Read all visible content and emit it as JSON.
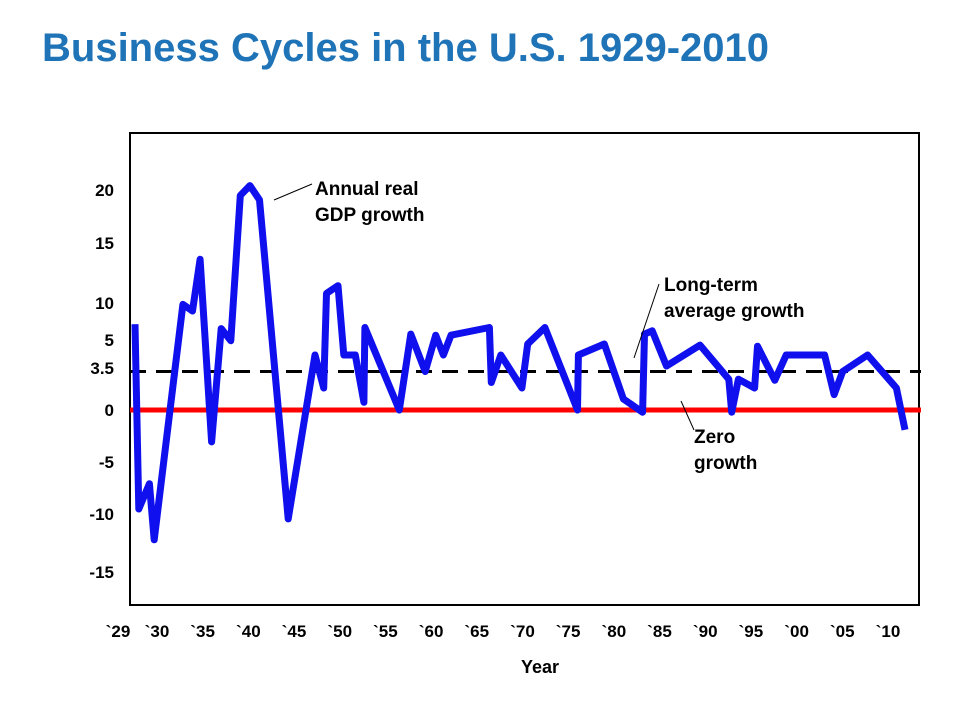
{
  "slide_title": "Business Cycles in the U.S. 1929-2010",
  "chart_data": {
    "type": "line",
    "title": "Business Cycles in the U.S. 1929-2010",
    "xlabel": "Year",
    "ylabel": "",
    "xlim": [
      1929,
      2011
    ],
    "ylim": [
      -17,
      24
    ],
    "grid": false,
    "y_ticks": [
      {
        "value": 20,
        "label": "20"
      },
      {
        "value": 15,
        "label": "15"
      },
      {
        "value": 10,
        "label": "10"
      },
      {
        "value": 5,
        "label": "5"
      },
      {
        "value": 3.5,
        "label": "3.5"
      },
      {
        "value": 0,
        "label": "0"
      },
      {
        "value": -5,
        "label": "-5"
      },
      {
        "value": -10,
        "label": "-10"
      },
      {
        "value": -15,
        "label": "-15"
      }
    ],
    "x_ticks": [
      {
        "value": 1929,
        "label": "`29"
      },
      {
        "value": 1930,
        "label": "`30"
      },
      {
        "value": 1935,
        "label": "`35"
      },
      {
        "value": 1940,
        "label": "`40"
      },
      {
        "value": 1945,
        "label": "`45"
      },
      {
        "value": 1950,
        "label": "`50"
      },
      {
        "value": 1955,
        "label": "`55"
      },
      {
        "value": 1960,
        "label": "`60"
      },
      {
        "value": 1965,
        "label": "`65"
      },
      {
        "value": 1970,
        "label": "`70"
      },
      {
        "value": 1975,
        "label": "`75"
      },
      {
        "value": 1980,
        "label": "`80"
      },
      {
        "value": 1985,
        "label": "`85"
      },
      {
        "value": 1990,
        "label": "`90"
      },
      {
        "value": 1995,
        "label": "`95"
      },
      {
        "value": 2000,
        "label": "`00"
      },
      {
        "value": 2005,
        "label": "`05"
      },
      {
        "value": 2010,
        "label": "`10"
      }
    ],
    "series": [
      {
        "color": "#1010ee",
        "points": [
          [
            1929,
            7.8
          ],
          [
            1929.4,
            -9.0
          ],
          [
            1930.5,
            -6.7
          ],
          [
            1931,
            -11.8
          ],
          [
            1934,
            9.6
          ],
          [
            1935,
            9.0
          ],
          [
            1935.8,
            13.7
          ],
          [
            1937,
            -2.9
          ],
          [
            1938,
            7.4
          ],
          [
            1939,
            6.3
          ],
          [
            1940,
            19.5
          ],
          [
            1941,
            20.4
          ],
          [
            1942,
            19.1
          ],
          [
            1945,
            -9.9
          ],
          [
            1947.8,
            5.0
          ],
          [
            1948.7,
            2.0
          ],
          [
            1949,
            10.6
          ],
          [
            1950.2,
            11.3
          ],
          [
            1950.8,
            5.0
          ],
          [
            1952,
            5.0
          ],
          [
            1952.9,
            0.7
          ],
          [
            1953,
            7.5
          ],
          [
            1956.6,
            0.0
          ],
          [
            1957.8,
            6.9
          ],
          [
            1959.3,
            3.5
          ],
          [
            1960.4,
            6.8
          ],
          [
            1961.2,
            5.0
          ],
          [
            1962,
            6.8
          ],
          [
            1966,
            7.5
          ],
          [
            1966.2,
            2.5
          ],
          [
            1967.2,
            5.0
          ],
          [
            1969.4,
            2.0
          ],
          [
            1970,
            6.0
          ],
          [
            1971.8,
            7.5
          ],
          [
            1975.2,
            0.0
          ],
          [
            1975.3,
            5.0
          ],
          [
            1978,
            6.0
          ],
          [
            1980,
            1.0
          ],
          [
            1982,
            -0.2
          ],
          [
            1982.2,
            6.9
          ],
          [
            1983,
            7.2
          ],
          [
            1984.5,
            4.0
          ],
          [
            1988,
            5.9
          ],
          [
            1991,
            2.8
          ],
          [
            1991.3,
            -0.2
          ],
          [
            1992,
            2.8
          ],
          [
            1993.7,
            2.0
          ],
          [
            1994,
            5.8
          ],
          [
            1995.8,
            2.7
          ],
          [
            1997,
            5.0
          ],
          [
            2001,
            5.0
          ],
          [
            2002,
            1.4
          ],
          [
            2002.9,
            3.5
          ],
          [
            2005.5,
            5.0
          ],
          [
            2008.5,
            2.0
          ],
          [
            2009.4,
            -1.8
          ]
        ]
      }
    ],
    "reference_lines": [
      {
        "value": 3.5,
        "color": "#000000",
        "style": "dashed"
      },
      {
        "value": 0,
        "color": "#ff0000",
        "style": "solid"
      }
    ],
    "annotations": [
      {
        "lines": [
          "Annual real",
          "GDP growth"
        ]
      },
      {
        "lines": [
          "Long-term",
          "average growth"
        ]
      },
      {
        "lines": [
          "Zero",
          "growth"
        ]
      }
    ]
  }
}
